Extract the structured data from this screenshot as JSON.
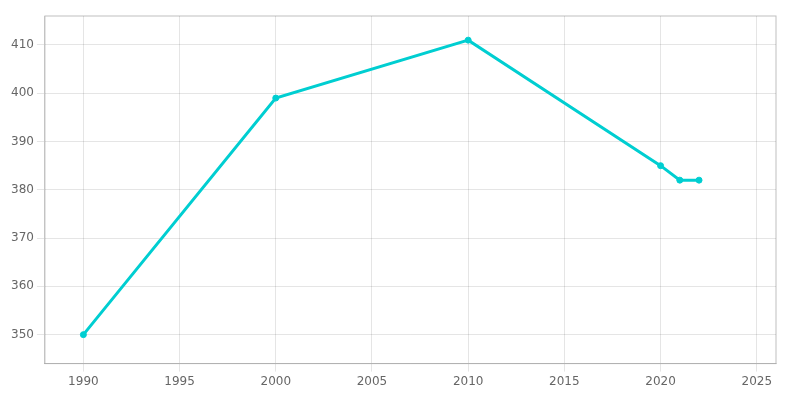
{
  "chart_data": {
    "type": "line",
    "x": [
      1990,
      2000,
      2010,
      2020,
      2021,
      2022
    ],
    "values": [
      350,
      399,
      411,
      385,
      382,
      382
    ],
    "color": "#00CED1",
    "marker": "circle",
    "xlim": [
      1988,
      2026
    ],
    "ylim": [
      344,
      416
    ],
    "xticks": [
      1990,
      1995,
      2000,
      2005,
      2010,
      2015,
      2020,
      2025
    ],
    "yticks": [
      350,
      360,
      370,
      380,
      390,
      400,
      410
    ],
    "grid": true
  }
}
